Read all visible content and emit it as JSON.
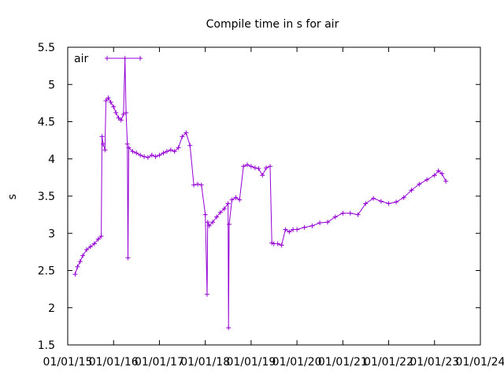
{
  "chart_data": {
    "type": "line",
    "title": "Compile time in s for air",
    "xlabel": "",
    "ylabel": "s",
    "ylim": [
      1.5,
      5.5
    ],
    "yticks": [
      "1.5",
      "2",
      "2.5",
      "3",
      "3.5",
      "4",
      "4.5",
      "5",
      "5.5"
    ],
    "xticks": [
      "01/01/15",
      "01/01/16",
      "01/01/17",
      "01/01/18",
      "01/01/19",
      "01/01/20",
      "01/01/21",
      "01/01/22",
      "01/01/23",
      "01/01/24"
    ],
    "xlim": [
      "2015-01-01",
      "2024-01-01"
    ],
    "grid": false,
    "legend_position": "top-left",
    "series": [
      {
        "name": "air",
        "color": "#9400d3",
        "marker": "plus",
        "points": [
          [
            "2015-03-01",
            2.45
          ],
          [
            "2015-03-20",
            2.55
          ],
          [
            "2015-04-10",
            2.62
          ],
          [
            "2015-05-01",
            2.7
          ],
          [
            "2015-06-01",
            2.78
          ],
          [
            "2015-07-01",
            2.82
          ],
          [
            "2015-08-01",
            2.86
          ],
          [
            "2015-09-01",
            2.92
          ],
          [
            "2015-09-25",
            2.96
          ],
          [
            "2015-10-01",
            4.3
          ],
          [
            "2015-10-10",
            4.2
          ],
          [
            "2015-10-25",
            4.12
          ],
          [
            "2015-11-01",
            4.78
          ],
          [
            "2015-11-20",
            4.82
          ],
          [
            "2015-12-10",
            4.76
          ],
          [
            "2016-01-01",
            4.7
          ],
          [
            "2016-01-20",
            4.62
          ],
          [
            "2016-02-10",
            4.55
          ],
          [
            "2016-03-01",
            4.52
          ],
          [
            "2016-03-20",
            4.6
          ],
          [
            "2016-04-01",
            5.35
          ],
          [
            "2016-04-10",
            4.62
          ],
          [
            "2016-04-20",
            4.2
          ],
          [
            "2016-04-25",
            2.67
          ],
          [
            "2016-05-01",
            4.15
          ],
          [
            "2016-06-01",
            4.1
          ],
          [
            "2016-07-01",
            4.08
          ],
          [
            "2016-08-01",
            4.05
          ],
          [
            "2016-09-01",
            4.03
          ],
          [
            "2016-10-01",
            4.02
          ],
          [
            "2016-11-01",
            4.05
          ],
          [
            "2016-12-01",
            4.03
          ],
          [
            "2017-01-01",
            4.05
          ],
          [
            "2017-02-01",
            4.08
          ],
          [
            "2017-03-01",
            4.1
          ],
          [
            "2017-04-01",
            4.12
          ],
          [
            "2017-05-01",
            4.1
          ],
          [
            "2017-06-01",
            4.15
          ],
          [
            "2017-07-01",
            4.3
          ],
          [
            "2017-08-01",
            4.35
          ],
          [
            "2017-09-01",
            4.18
          ],
          [
            "2017-10-01",
            3.65
          ],
          [
            "2017-11-01",
            3.66
          ],
          [
            "2017-12-01",
            3.65
          ],
          [
            "2018-01-01",
            3.25
          ],
          [
            "2018-01-15",
            2.18
          ],
          [
            "2018-01-20",
            3.15
          ],
          [
            "2018-02-01",
            3.1
          ],
          [
            "2018-03-01",
            3.15
          ],
          [
            "2018-04-01",
            3.22
          ],
          [
            "2018-05-01",
            3.28
          ],
          [
            "2018-06-01",
            3.33
          ],
          [
            "2018-07-01",
            3.4
          ],
          [
            "2018-07-05",
            1.73
          ],
          [
            "2018-07-10",
            3.12
          ],
          [
            "2018-08-01",
            3.45
          ],
          [
            "2018-09-01",
            3.48
          ],
          [
            "2018-10-01",
            3.45
          ],
          [
            "2018-11-01",
            3.9
          ],
          [
            "2018-12-01",
            3.92
          ],
          [
            "2019-01-01",
            3.9
          ],
          [
            "2019-02-01",
            3.88
          ],
          [
            "2019-03-01",
            3.87
          ],
          [
            "2019-04-01",
            3.78
          ],
          [
            "2019-05-01",
            3.88
          ],
          [
            "2019-06-01",
            3.9
          ],
          [
            "2019-06-15",
            2.87
          ],
          [
            "2019-07-01",
            2.86
          ],
          [
            "2019-08-01",
            2.86
          ],
          [
            "2019-09-01",
            2.84
          ],
          [
            "2019-10-01",
            3.05
          ],
          [
            "2019-11-01",
            3.02
          ],
          [
            "2019-12-01",
            3.05
          ],
          [
            "2020-01-01",
            3.05
          ],
          [
            "2020-03-01",
            3.08
          ],
          [
            "2020-05-01",
            3.1
          ],
          [
            "2020-07-01",
            3.14
          ],
          [
            "2020-09-01",
            3.15
          ],
          [
            "2020-11-01",
            3.22
          ],
          [
            "2021-01-01",
            3.27
          ],
          [
            "2021-03-01",
            3.27
          ],
          [
            "2021-05-01",
            3.25
          ],
          [
            "2021-07-01",
            3.4
          ],
          [
            "2021-09-01",
            3.47
          ],
          [
            "2021-11-01",
            3.43
          ],
          [
            "2022-01-01",
            3.4
          ],
          [
            "2022-03-01",
            3.42
          ],
          [
            "2022-05-01",
            3.48
          ],
          [
            "2022-07-01",
            3.58
          ],
          [
            "2022-09-01",
            3.66
          ],
          [
            "2022-11-01",
            3.72
          ],
          [
            "2023-01-01",
            3.78
          ],
          [
            "2023-02-01",
            3.84
          ],
          [
            "2023-03-01",
            3.8
          ],
          [
            "2023-04-01",
            3.7
          ]
        ]
      }
    ]
  }
}
